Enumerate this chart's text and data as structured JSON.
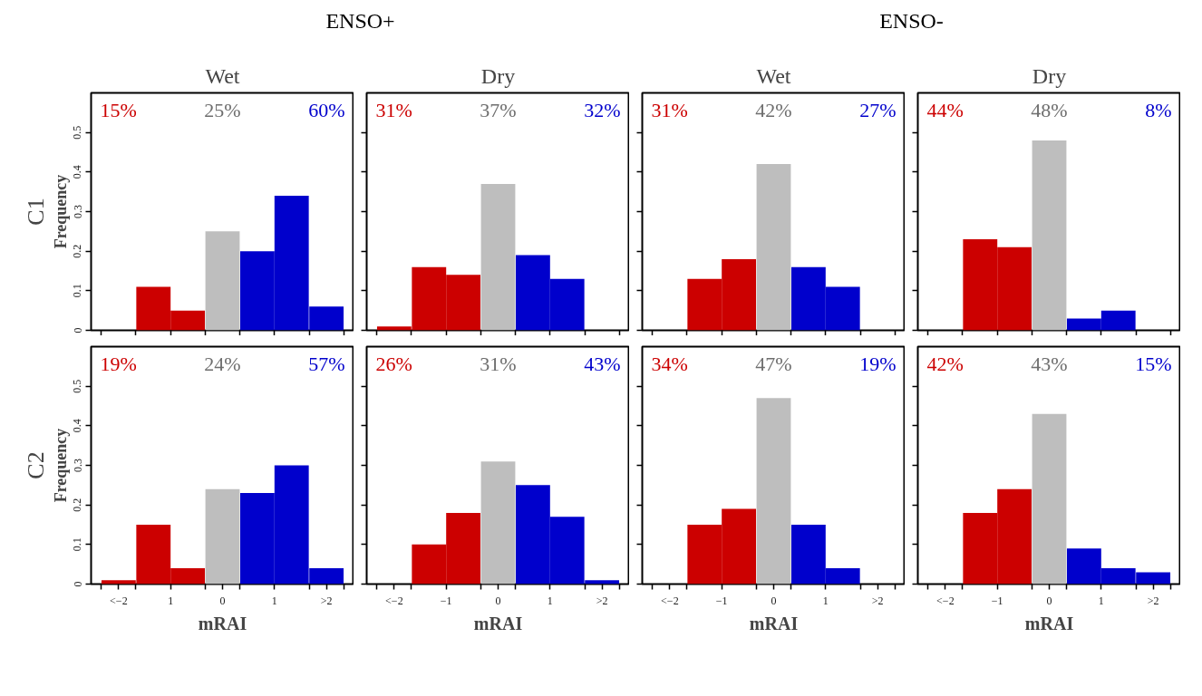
{
  "chart_data": [
    {
      "type": "bar",
      "title": "ENSO+",
      "subtitle": "Wet",
      "ylabel": "Frequency",
      "x": [
        -2,
        -1.33,
        -0.67,
        0,
        0.67,
        1.33,
        2
      ],
      "values": [
        0,
        0.11,
        0.05,
        0.25,
        0.2,
        0.34,
        0.06
      ],
      "colors": [
        "#cc0000",
        "#cc0000",
        "#cc0000",
        "#bebebe",
        "#0000cc",
        "#0000cc",
        "#0000cc"
      ],
      "annotations": [
        "15%",
        "25%",
        "60%",
        "C1"
      ],
      "xlim": [
        -2.53,
        2.53
      ],
      "ylim": [
        0,
        0.6
      ],
      "xticks": [
        {
          "value": -2.33,
          "label": null
        },
        {
          "value": -1.67,
          "label": null
        },
        {
          "value": -1,
          "label": null
        },
        {
          "value": -0.33,
          "label": null
        },
        {
          "value": 0.33,
          "label": null
        },
        {
          "value": 1,
          "label": null
        },
        {
          "value": 1.67,
          "label": null
        },
        {
          "value": 2.33,
          "label": null
        }
      ],
      "yticks": [
        0,
        0.1,
        0.2,
        0.3,
        0.4,
        0.5
      ],
      "tick_labels": "y",
      "grid": false
    },
    {
      "type": "bar",
      "subtitle": "Dry",
      "x": [
        -2,
        -1.33,
        -0.67,
        0,
        0.67,
        1.33,
        2
      ],
      "values": [
        0.01,
        0.16,
        0.14,
        0.37,
        0.19,
        0.13,
        0
      ],
      "colors": [
        "#cc0000",
        "#cc0000",
        "#cc0000",
        "#bebebe",
        "#0000cc",
        "#0000cc",
        "#0000cc"
      ],
      "annotations": [
        "31%",
        "37%",
        "32%"
      ],
      "xlim": [
        -2.53,
        2.53
      ],
      "ylim": [
        0,
        0.6
      ],
      "xticks": [
        {
          "value": -2.33,
          "label": null
        },
        {
          "value": -1.67,
          "label": null
        },
        {
          "value": -1,
          "label": null
        },
        {
          "value": -0.33,
          "label": null
        },
        {
          "value": 0.33,
          "label": null
        },
        {
          "value": 1,
          "label": null
        },
        {
          "value": 1.67,
          "label": null
        },
        {
          "value": 2.33,
          "label": null
        }
      ],
      "yticks": [
        0,
        0.1,
        0.2,
        0.3,
        0.4,
        0.5
      ],
      "tick_labels": false,
      "grid": false
    },
    {
      "type": "bar",
      "title": "ENSO-",
      "subtitle": "Wet",
      "x": [
        -2,
        -1.33,
        -0.67,
        0,
        0.67,
        1.33,
        2
      ],
      "values": [
        0,
        0.13,
        0.18,
        0.42,
        0.16,
        0.11,
        0
      ],
      "colors": [
        "#cc0000",
        "#cc0000",
        "#cc0000",
        "#bebebe",
        "#0000cc",
        "#0000cc",
        "#0000cc"
      ],
      "annotations": [
        "31%",
        "42%",
        "27%"
      ],
      "xlim": [
        -2.53,
        2.53
      ],
      "ylim": [
        0,
        0.6
      ],
      "xticks": [
        {
          "value": -2.33,
          "label": null
        },
        {
          "value": -1.67,
          "label": null
        },
        {
          "value": -1,
          "label": null
        },
        {
          "value": -0.33,
          "label": null
        },
        {
          "value": 0.33,
          "label": null
        },
        {
          "value": 1,
          "label": null
        },
        {
          "value": 1.67,
          "label": null
        },
        {
          "value": 2.33,
          "label": null
        }
      ],
      "yticks": [
        0,
        0.1,
        0.2,
        0.3,
        0.4,
        0.5
      ],
      "tick_labels": false,
      "grid": false
    },
    {
      "type": "bar",
      "subtitle": "Dry",
      "x": [
        -2,
        -1.33,
        -0.67,
        0,
        0.67,
        1.33,
        2
      ],
      "values": [
        0,
        0.23,
        0.21,
        0.48,
        0.03,
        0.05,
        0
      ],
      "colors": [
        "#cc0000",
        "#cc0000",
        "#cc0000",
        "#bebebe",
        "#0000cc",
        "#0000cc",
        "#0000cc"
      ],
      "annotations": [
        "44%",
        "48%",
        "8%"
      ],
      "xlim": [
        -2.53,
        2.53
      ],
      "ylim": [
        0,
        0.6
      ],
      "xticks": [
        {
          "value": -2.33,
          "label": null
        },
        {
          "value": -1.67,
          "label": null
        },
        {
          "value": -1,
          "label": null
        },
        {
          "value": -0.33,
          "label": null
        },
        {
          "value": 0.33,
          "label": null
        },
        {
          "value": 1,
          "label": null
        },
        {
          "value": 1.67,
          "label": null
        },
        {
          "value": 2.33,
          "label": null
        }
      ],
      "yticks": [
        0,
        0.1,
        0.2,
        0.3,
        0.4,
        0.5
      ],
      "tick_labels": false,
      "grid": false
    },
    {
      "type": "bar",
      "xlabel": "mRAI",
      "ylabel": "Frequency",
      "x": [
        -2,
        -1.33,
        -0.67,
        0,
        0.67,
        1.33,
        2
      ],
      "values": [
        0.01,
        0.15,
        0.04,
        0.24,
        0.23,
        0.3,
        0.04
      ],
      "colors": [
        "#cc0000",
        "#cc0000",
        "#cc0000",
        "#bebebe",
        "#0000cc",
        "#0000cc",
        "#0000cc"
      ],
      "annotations": [
        "19%",
        "24%",
        "57%",
        "C2"
      ],
      "xlim": [
        -2.53,
        2.53
      ],
      "ylim": [
        0,
        0.6
      ],
      "xticks": [
        {
          "value": -2.33,
          "label": null
        },
        {
          "value": -2,
          "label": "<−2"
        },
        {
          "value": -1.67,
          "label": null
        },
        {
          "value": -1,
          "label": "1"
        },
        {
          "value": -0.33,
          "label": null
        },
        0,
        {
          "value": 0.33,
          "label": null
        },
        1,
        {
          "value": 1.67,
          "label": null
        },
        {
          "value": 2,
          "label": ">2"
        },
        {
          "value": 2.33,
          "label": null
        }
      ],
      "yticks": [
        0,
        0.1,
        0.2,
        0.3,
        0.4,
        0.5
      ],
      "grid": false
    },
    {
      "type": "bar",
      "xlabel": "mRAI",
      "x": [
        -2,
        -1.33,
        -0.67,
        0,
        0.67,
        1.33,
        2
      ],
      "values": [
        0,
        0.1,
        0.18,
        0.31,
        0.25,
        0.17,
        0.01
      ],
      "colors": [
        "#cc0000",
        "#cc0000",
        "#cc0000",
        "#bebebe",
        "#0000cc",
        "#0000cc",
        "#0000cc"
      ],
      "annotations": [
        "26%",
        "31%",
        "43%"
      ],
      "xlim": [
        -2.53,
        2.53
      ],
      "ylim": [
        0,
        0.6
      ],
      "xticks": [
        {
          "value": -2.33,
          "label": null
        },
        {
          "value": -2,
          "label": "<−2"
        },
        {
          "value": -1.67,
          "label": null
        },
        {
          "value": -1,
          "label": "−1"
        },
        {
          "value": -0.33,
          "label": null
        },
        0,
        {
          "value": 0.33,
          "label": null
        },
        1,
        {
          "value": 1.67,
          "label": null
        },
        {
          "value": 2,
          "label": ">2"
        },
        {
          "value": 2.33,
          "label": null
        }
      ],
      "yticks": [
        0,
        0.1,
        0.2,
        0.3,
        0.4,
        0.5
      ],
      "tick_labels": "x",
      "grid": false
    },
    {
      "type": "bar",
      "xlabel": "mRAI",
      "x": [
        -2,
        -1.33,
        -0.67,
        0,
        0.67,
        1.33,
        2
      ],
      "values": [
        0,
        0.15,
        0.19,
        0.47,
        0.15,
        0.04,
        0
      ],
      "colors": [
        "#cc0000",
        "#cc0000",
        "#cc0000",
        "#bebebe",
        "#0000cc",
        "#0000cc",
        "#0000cc"
      ],
      "annotations": [
        "34%",
        "47%",
        "19%"
      ],
      "xlim": [
        -2.53,
        2.53
      ],
      "ylim": [
        0,
        0.6
      ],
      "xticks": [
        {
          "value": -2.33,
          "label": null
        },
        {
          "value": -2,
          "label": "<−2"
        },
        {
          "value": -1.67,
          "label": null
        },
        {
          "value": -1,
          "label": "−1"
        },
        {
          "value": -0.33,
          "label": null
        },
        0,
        {
          "value": 0.33,
          "label": null
        },
        1,
        {
          "value": 1.67,
          "label": null
        },
        {
          "value": 2,
          "label": ">2"
        },
        {
          "value": 2.33,
          "label": null
        }
      ],
      "yticks": [
        0,
        0.1,
        0.2,
        0.3,
        0.4,
        0.5
      ],
      "tick_labels": "x",
      "grid": false
    },
    {
      "type": "bar",
      "xlabel": "mRAI",
      "x": [
        -2,
        -1.33,
        -0.67,
        0,
        0.67,
        1.33,
        2
      ],
      "values": [
        0,
        0.18,
        0.24,
        0.43,
        0.09,
        0.04,
        0.03
      ],
      "colors": [
        "#cc0000",
        "#cc0000",
        "#cc0000",
        "#bebebe",
        "#0000cc",
        "#0000cc",
        "#0000cc"
      ],
      "annotations": [
        "42%",
        "43%",
        "15%"
      ],
      "xlim": [
        -2.53,
        2.53
      ],
      "ylim": [
        0,
        0.6
      ],
      "xticks": [
        {
          "value": -2.33,
          "label": null
        },
        {
          "value": -2,
          "label": "<−2"
        },
        {
          "value": -1.67,
          "label": null
        },
        {
          "value": -1,
          "label": "−1"
        },
        {
          "value": -0.33,
          "label": null
        },
        0,
        {
          "value": 0.33,
          "label": null
        },
        1,
        {
          "value": 1.67,
          "label": null
        },
        {
          "value": 2,
          "label": ">2"
        },
        {
          "value": 2.33,
          "label": null
        }
      ],
      "yticks": [
        0,
        0.1,
        0.2,
        0.3,
        0.4,
        0.5
      ],
      "tick_labels": "x",
      "grid": false
    }
  ]
}
